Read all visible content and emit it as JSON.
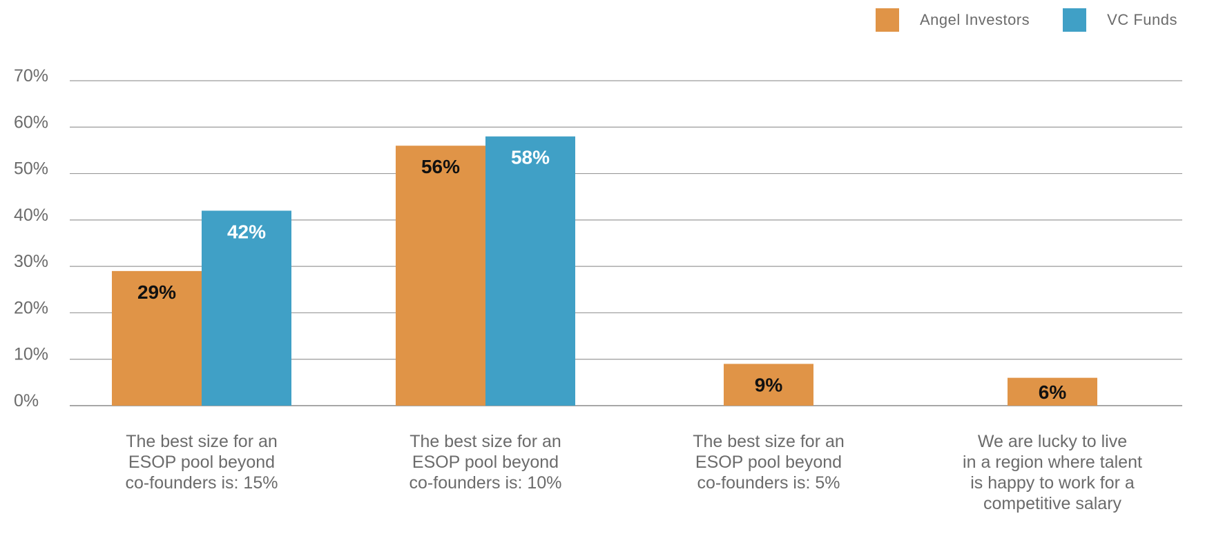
{
  "legend": {
    "items": [
      {
        "label": "Angel Investors",
        "color": "#E09447"
      },
      {
        "label": "VC Funds",
        "color": "#40A0C6"
      }
    ]
  },
  "chart_data": {
    "type": "bar",
    "categories": [
      [
        "The best size for an",
        "ESOP pool beyond",
        "co-founders is: 15%"
      ],
      [
        "The best size for an",
        "ESOP pool beyond",
        "co-founders is: 10%"
      ],
      [
        "The best size for an",
        "ESOP pool beyond",
        "co-founders is: 5%"
      ],
      [
        "We are lucky to live",
        "in a region where talent",
        "is happy to work for a",
        "competitive salary"
      ]
    ],
    "series": [
      {
        "name": "Angel Investors",
        "color": "#E09447",
        "label_color": "#111111",
        "values": [
          29,
          56,
          9,
          6
        ],
        "labels": [
          "29%",
          "56%",
          "9%",
          "6%"
        ]
      },
      {
        "name": "VC Funds",
        "color": "#40A0C6",
        "label_color": "#ffffff",
        "values": [
          42,
          58,
          null,
          null
        ],
        "labels": [
          "42%",
          "58%",
          "",
          ""
        ]
      }
    ],
    "yticks": [
      "0%",
      "10%",
      "20%",
      "30%",
      "40%",
      "50%",
      "60%",
      "70%"
    ],
    "ylim": [
      0,
      70
    ],
    "grid": true,
    "legend_position": "top-right",
    "title": "",
    "xlabel": "",
    "ylabel": ""
  }
}
